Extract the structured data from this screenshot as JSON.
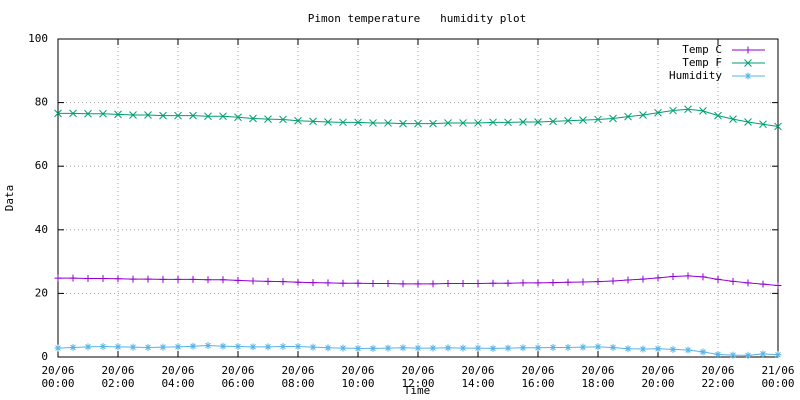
{
  "chart_data": {
    "type": "line",
    "title": "Pimon temperature   humidity plot",
    "x_label": "Time",
    "y_label": "Data",
    "x": [
      "20/06 00:00",
      "20/06 00:30",
      "20/06 01:00",
      "20/06 01:30",
      "20/06 02:00",
      "20/06 02:30",
      "20/06 03:00",
      "20/06 03:30",
      "20/06 04:00",
      "20/06 04:30",
      "20/06 05:00",
      "20/06 05:30",
      "20/06 06:00",
      "20/06 06:30",
      "20/06 07:00",
      "20/06 07:30",
      "20/06 08:00",
      "20/06 08:30",
      "20/06 09:00",
      "20/06 09:30",
      "20/06 10:00",
      "20/06 10:30",
      "20/06 11:00",
      "20/06 11:30",
      "20/06 12:00",
      "20/06 12:30",
      "20/06 13:00",
      "20/06 13:30",
      "20/06 14:00",
      "20/06 14:30",
      "20/06 15:00",
      "20/06 15:30",
      "20/06 16:00",
      "20/06 16:30",
      "20/06 17:00",
      "20/06 17:30",
      "20/06 18:00",
      "20/06 18:30",
      "20/06 19:00",
      "20/06 19:30",
      "20/06 20:00",
      "20/06 20:30",
      "20/06 21:00",
      "20/06 21:30",
      "20/06 22:00",
      "20/06 22:30",
      "20/06 23:00",
      "20/06 23:30",
      "21/06 00:00"
    ],
    "series": [
      {
        "name": "Temp C",
        "color": "#9400d3",
        "marker": "plus",
        "values": [
          24.8,
          24.8,
          24.7,
          24.7,
          24.6,
          24.5,
          24.5,
          24.4,
          24.4,
          24.4,
          24.3,
          24.3,
          24.1,
          23.9,
          23.8,
          23.7,
          23.5,
          23.4,
          23.3,
          23.2,
          23.2,
          23.1,
          23.1,
          23.0,
          23.0,
          23.0,
          23.1,
          23.1,
          23.1,
          23.2,
          23.2,
          23.3,
          23.3,
          23.4,
          23.5,
          23.6,
          23.7,
          23.9,
          24.2,
          24.5,
          24.9,
          25.3,
          25.5,
          25.2,
          24.4,
          23.8,
          23.3,
          22.9,
          22.5
        ]
      },
      {
        "name": "Temp F",
        "color": "#009e73",
        "marker": "cross",
        "values": [
          76.6,
          76.6,
          76.5,
          76.5,
          76.3,
          76.1,
          76.1,
          75.9,
          75.9,
          75.9,
          75.7,
          75.7,
          75.4,
          75.0,
          74.8,
          74.7,
          74.3,
          74.1,
          73.9,
          73.8,
          73.8,
          73.6,
          73.6,
          73.4,
          73.4,
          73.4,
          73.6,
          73.6,
          73.6,
          73.8,
          73.8,
          73.9,
          73.9,
          74.1,
          74.3,
          74.5,
          74.7,
          75.0,
          75.6,
          76.1,
          76.8,
          77.5,
          77.9,
          77.4,
          75.9,
          74.8,
          73.9,
          73.2,
          72.5
        ]
      },
      {
        "name": "Humidity",
        "color": "#56b4e9",
        "marker": "star",
        "values": [
          2.8,
          3.0,
          3.2,
          3.3,
          3.2,
          3.1,
          3.0,
          3.1,
          3.2,
          3.4,
          3.6,
          3.4,
          3.3,
          3.2,
          3.2,
          3.3,
          3.3,
          3.1,
          2.9,
          2.8,
          2.7,
          2.7,
          2.8,
          2.9,
          2.8,
          2.8,
          2.9,
          2.8,
          2.8,
          2.7,
          2.8,
          2.9,
          2.9,
          3.0,
          3.0,
          3.1,
          3.2,
          3.0,
          2.6,
          2.5,
          2.6,
          2.4,
          2.2,
          1.6,
          0.8,
          0.6,
          0.5,
          1.0,
          0.7
        ]
      }
    ],
    "xlim": [
      "20/06 00:00",
      "21/06 00:00"
    ],
    "xticks": [
      "20/06 00:00",
      "20/06 02:00",
      "20/06 04:00",
      "20/06 06:00",
      "20/06 08:00",
      "20/06 10:00",
      "20/06 12:00",
      "20/06 14:00",
      "20/06 16:00",
      "20/06 18:00",
      "20/06 20:00",
      "20/06 22:00",
      "21/06 00:00"
    ],
    "ylim": [
      0,
      100
    ],
    "yticks": [
      0,
      20,
      40,
      60,
      80,
      100
    ],
    "grid": true,
    "legend": "top-right"
  }
}
